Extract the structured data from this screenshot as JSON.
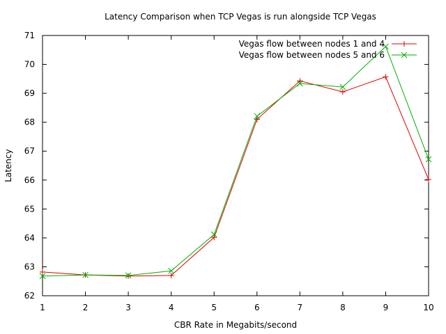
{
  "chart_data": {
    "type": "line",
    "title": "Latency Comparison when TCP Vegas is run alongside TCP Vegas",
    "xlabel": "CBR Rate in Megabits/second",
    "ylabel": "Latency",
    "xlim": [
      1,
      10
    ],
    "ylim": [
      62,
      71
    ],
    "x_ticks": [
      "1",
      "2",
      "3",
      "4",
      "5",
      "6",
      "7",
      "8",
      "9",
      "10"
    ],
    "y_ticks": [
      "62",
      "63",
      "64",
      "65",
      "66",
      "67",
      "68",
      "69",
      "70",
      "71"
    ],
    "grid": false,
    "legend_position": "top-right",
    "x": [
      1,
      2,
      3,
      4,
      5,
      6,
      7,
      8,
      9,
      10
    ],
    "series": [
      {
        "name": "Vegas flow between nodes 1 and 4",
        "color": "#e00000",
        "marker": "plus",
        "values": [
          62.82,
          62.72,
          62.68,
          62.7,
          64.02,
          68.1,
          69.43,
          69.05,
          69.57,
          66.02
        ]
      },
      {
        "name": "Vegas flow between nodes 5 and 6",
        "color": "#00b000",
        "marker": "cross",
        "values": [
          62.68,
          62.72,
          62.7,
          62.86,
          64.12,
          68.21,
          69.34,
          69.22,
          70.62,
          66.72
        ]
      }
    ]
  }
}
